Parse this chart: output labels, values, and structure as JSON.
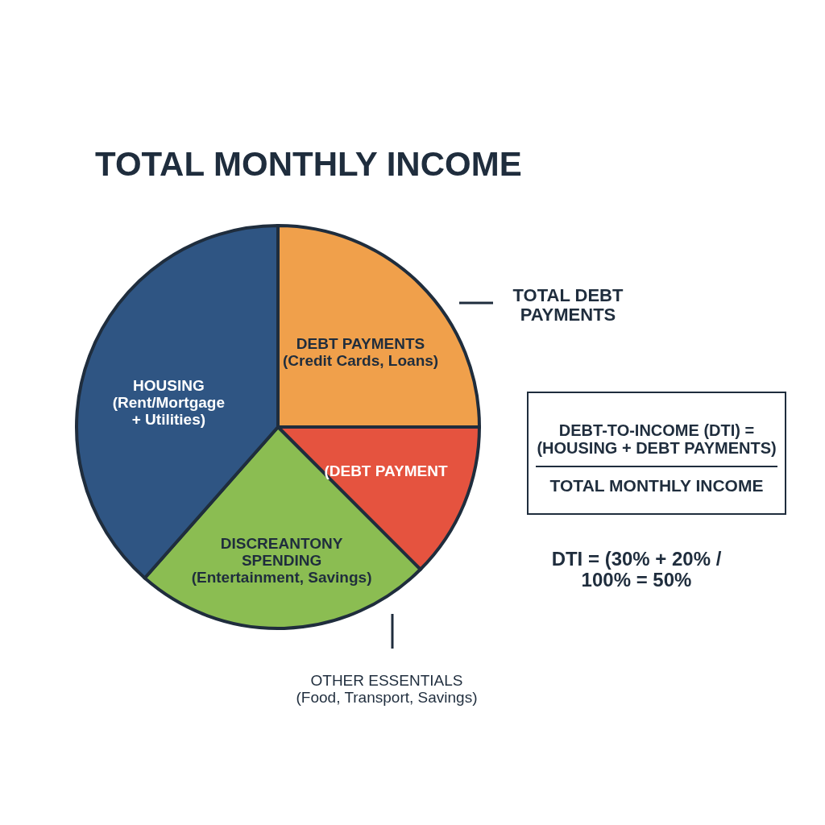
{
  "chart_data": {
    "type": "pie",
    "title": "TOTAL MONTHLY INCOME",
    "categories": [
      "DEBT PAYMENTS\n(Credit Cards, Loans)",
      "(DEBT PAYMENT",
      "DISCREANTONY\nSPENDING\n(Entertainment, Savings)",
      "HOUSING\n(Rent/Mortgage\n+ Utilities)"
    ],
    "values": [
      25,
      12.5,
      24,
      38.5
    ],
    "colors": [
      "#f0a04b",
      "#e5533f",
      "#8bbd52",
      "#2f5583"
    ],
    "annotations": [
      "TOTAL DEBT\nPAYMENTS",
      "DEBT-TO-INCOME (DTI) =\n(HOUSING + DEBT PAYMENTS)",
      "TOTAL MONTHLY INCOME",
      "DTI = (30% + 20% /\n100% = 50%",
      "OTHER ESSENTIALS\n(Food, Transport, Savings)"
    ]
  }
}
